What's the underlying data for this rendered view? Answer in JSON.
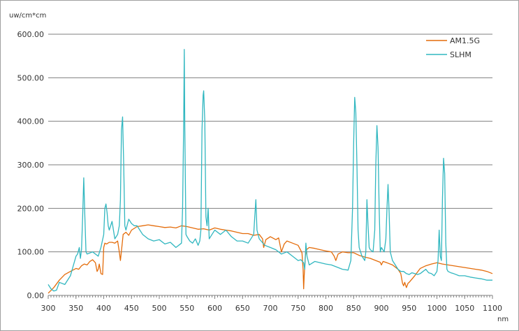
{
  "chart_data": {
    "type": "line",
    "title": "",
    "ylabel": "uw/cm*cm",
    "xlabel": "nm",
    "xlim": [
      300,
      1100
    ],
    "ylim": [
      0,
      600
    ],
    "x_ticks": [
      300,
      350,
      400,
      450,
      500,
      550,
      600,
      650,
      700,
      750,
      800,
      850,
      900,
      950,
      1000,
      1050,
      1100
    ],
    "x_tick_labels": [
      "300",
      "350",
      "400",
      "450",
      "500",
      "550",
      "600",
      "650",
      "700",
      "750",
      "800",
      "850",
      "900",
      "950",
      "1000",
      "1050",
      "1100"
    ],
    "y_ticks": [
      0,
      100,
      200,
      300,
      400,
      500,
      600
    ],
    "y_tick_labels": [
      "0.00",
      "100.00",
      "200.00",
      "300.00",
      "400.00",
      "500.00",
      "600.00"
    ],
    "grid": "horizontal",
    "legend_position": "top-right",
    "colors": {
      "AM1.5G": "#e46c0a",
      "SLHM": "#31b7c0",
      "grid": "#7f7f7f",
      "axis": "#7f7f7f"
    },
    "series": [
      {
        "name": "AM1.5G",
        "x": [
          300,
          310,
          320,
          330,
          340,
          350,
          355,
          360,
          365,
          370,
          375,
          380,
          385,
          388,
          390,
          392,
          395,
          398,
          400,
          402,
          405,
          410,
          415,
          420,
          425,
          428,
          430,
          433,
          435,
          440,
          445,
          450,
          460,
          470,
          480,
          490,
          500,
          510,
          520,
          530,
          540,
          550,
          560,
          570,
          580,
          590,
          600,
          610,
          620,
          630,
          640,
          650,
          660,
          670,
          680,
          686,
          688,
          692,
          700,
          710,
          715,
          720,
          725,
          730,
          740,
          750,
          757,
          759,
          760,
          761,
          763,
          765,
          770,
          780,
          790,
          800,
          810,
          815,
          818,
          822,
          830,
          840,
          850,
          860,
          870,
          880,
          890,
          898,
          900,
          903,
          910,
          920,
          925,
          930,
          935,
          938,
          940,
          942,
          945,
          948,
          950,
          960,
          970,
          980,
          990,
          1000,
          1010,
          1020,
          1030,
          1040,
          1050,
          1060,
          1070,
          1080,
          1090,
          1100
        ],
        "values": [
          5,
          18,
          35,
          48,
          55,
          62,
          60,
          68,
          72,
          70,
          78,
          82,
          75,
          55,
          60,
          72,
          50,
          48,
          110,
          120,
          118,
          122,
          122,
          120,
          125,
          100,
          80,
          115,
          140,
          145,
          138,
          150,
          158,
          160,
          162,
          160,
          158,
          156,
          157,
          155,
          160,
          158,
          155,
          152,
          153,
          150,
          155,
          152,
          150,
          148,
          145,
          142,
          142,
          138,
          140,
          130,
          110,
          128,
          135,
          128,
          132,
          100,
          118,
          125,
          120,
          115,
          98,
          60,
          15,
          45,
          90,
          105,
          110,
          108,
          105,
          102,
          100,
          90,
          80,
          95,
          100,
          98,
          98,
          92,
          88,
          85,
          80,
          76,
          70,
          78,
          75,
          70,
          65,
          60,
          50,
          28,
          22,
          30,
          18,
          28,
          30,
          45,
          62,
          68,
          72,
          75,
          72,
          70,
          68,
          66,
          64,
          62,
          60,
          58,
          55,
          50
        ]
      },
      {
        "name": "SLHM",
        "x": [
          300,
          305,
          310,
          315,
          320,
          330,
          340,
          350,
          353,
          356,
          358,
          360,
          362,
          364,
          366,
          368,
          370,
          380,
          390,
          395,
          400,
          402,
          404,
          406,
          408,
          410,
          415,
          420,
          425,
          428,
          430,
          432,
          434,
          436,
          438,
          440,
          445,
          450,
          455,
          460,
          465,
          470,
          480,
          490,
          500,
          510,
          520,
          530,
          535,
          540,
          542,
          544,
          545,
          546,
          548,
          550,
          555,
          560,
          565,
          570,
          573,
          575,
          577,
          579,
          580,
          582,
          584,
          586,
          588,
          590,
          595,
          600,
          610,
          620,
          630,
          640,
          650,
          660,
          670,
          672,
          674,
          676,
          680,
          690,
          700,
          710,
          720,
          730,
          740,
          750,
          755,
          760,
          762,
          764,
          766,
          768,
          770,
          780,
          790,
          800,
          810,
          820,
          830,
          840,
          845,
          848,
          850,
          852,
          854,
          856,
          858,
          860,
          865,
          870,
          872,
          874,
          876,
          878,
          880,
          885,
          888,
          890,
          892,
          894,
          896,
          898,
          900,
          905,
          908,
          910,
          912,
          914,
          916,
          918,
          920,
          925,
          930,
          935,
          940,
          945,
          950,
          955,
          960,
          965,
          970,
          975,
          980,
          985,
          990,
          995,
          1000,
          1002,
          1004,
          1006,
          1008,
          1010,
          1012,
          1014,
          1016,
          1018,
          1020,
          1025,
          1030,
          1040,
          1050,
          1060,
          1070,
          1080,
          1090,
          1100
        ],
        "values": [
          25,
          15,
          10,
          12,
          30,
          25,
          45,
          90,
          95,
          110,
          85,
          105,
          180,
          270,
          180,
          100,
          95,
          100,
          90,
          110,
          140,
          200,
          210,
          190,
          160,
          150,
          170,
          130,
          140,
          160,
          220,
          380,
          410,
          300,
          160,
          150,
          175,
          165,
          160,
          160,
          150,
          140,
          130,
          125,
          128,
          118,
          122,
          110,
          115,
          120,
          200,
          400,
          565,
          380,
          140,
          135,
          125,
          120,
          130,
          115,
          125,
          150,
          380,
          460,
          470,
          400,
          180,
          160,
          200,
          130,
          140,
          150,
          140,
          150,
          135,
          125,
          125,
          120,
          140,
          180,
          220,
          150,
          130,
          115,
          110,
          105,
          95,
          100,
          90,
          80,
          82,
          75,
          60,
          120,
          90,
          80,
          70,
          78,
          75,
          72,
          70,
          65,
          60,
          58,
          80,
          200,
          350,
          455,
          420,
          300,
          150,
          110,
          90,
          80,
          100,
          220,
          160,
          110,
          105,
          100,
          150,
          300,
          390,
          340,
          200,
          100,
          110,
          100,
          130,
          200,
          255,
          190,
          100,
          90,
          80,
          70,
          60,
          55,
          55,
          50,
          48,
          52,
          50,
          48,
          50,
          55,
          60,
          52,
          50,
          45,
          55,
          80,
          150,
          90,
          80,
          220,
          315,
          280,
          120,
          60,
          55,
          52,
          50,
          45,
          45,
          42,
          40,
          38,
          35,
          35
        ]
      }
    ]
  }
}
